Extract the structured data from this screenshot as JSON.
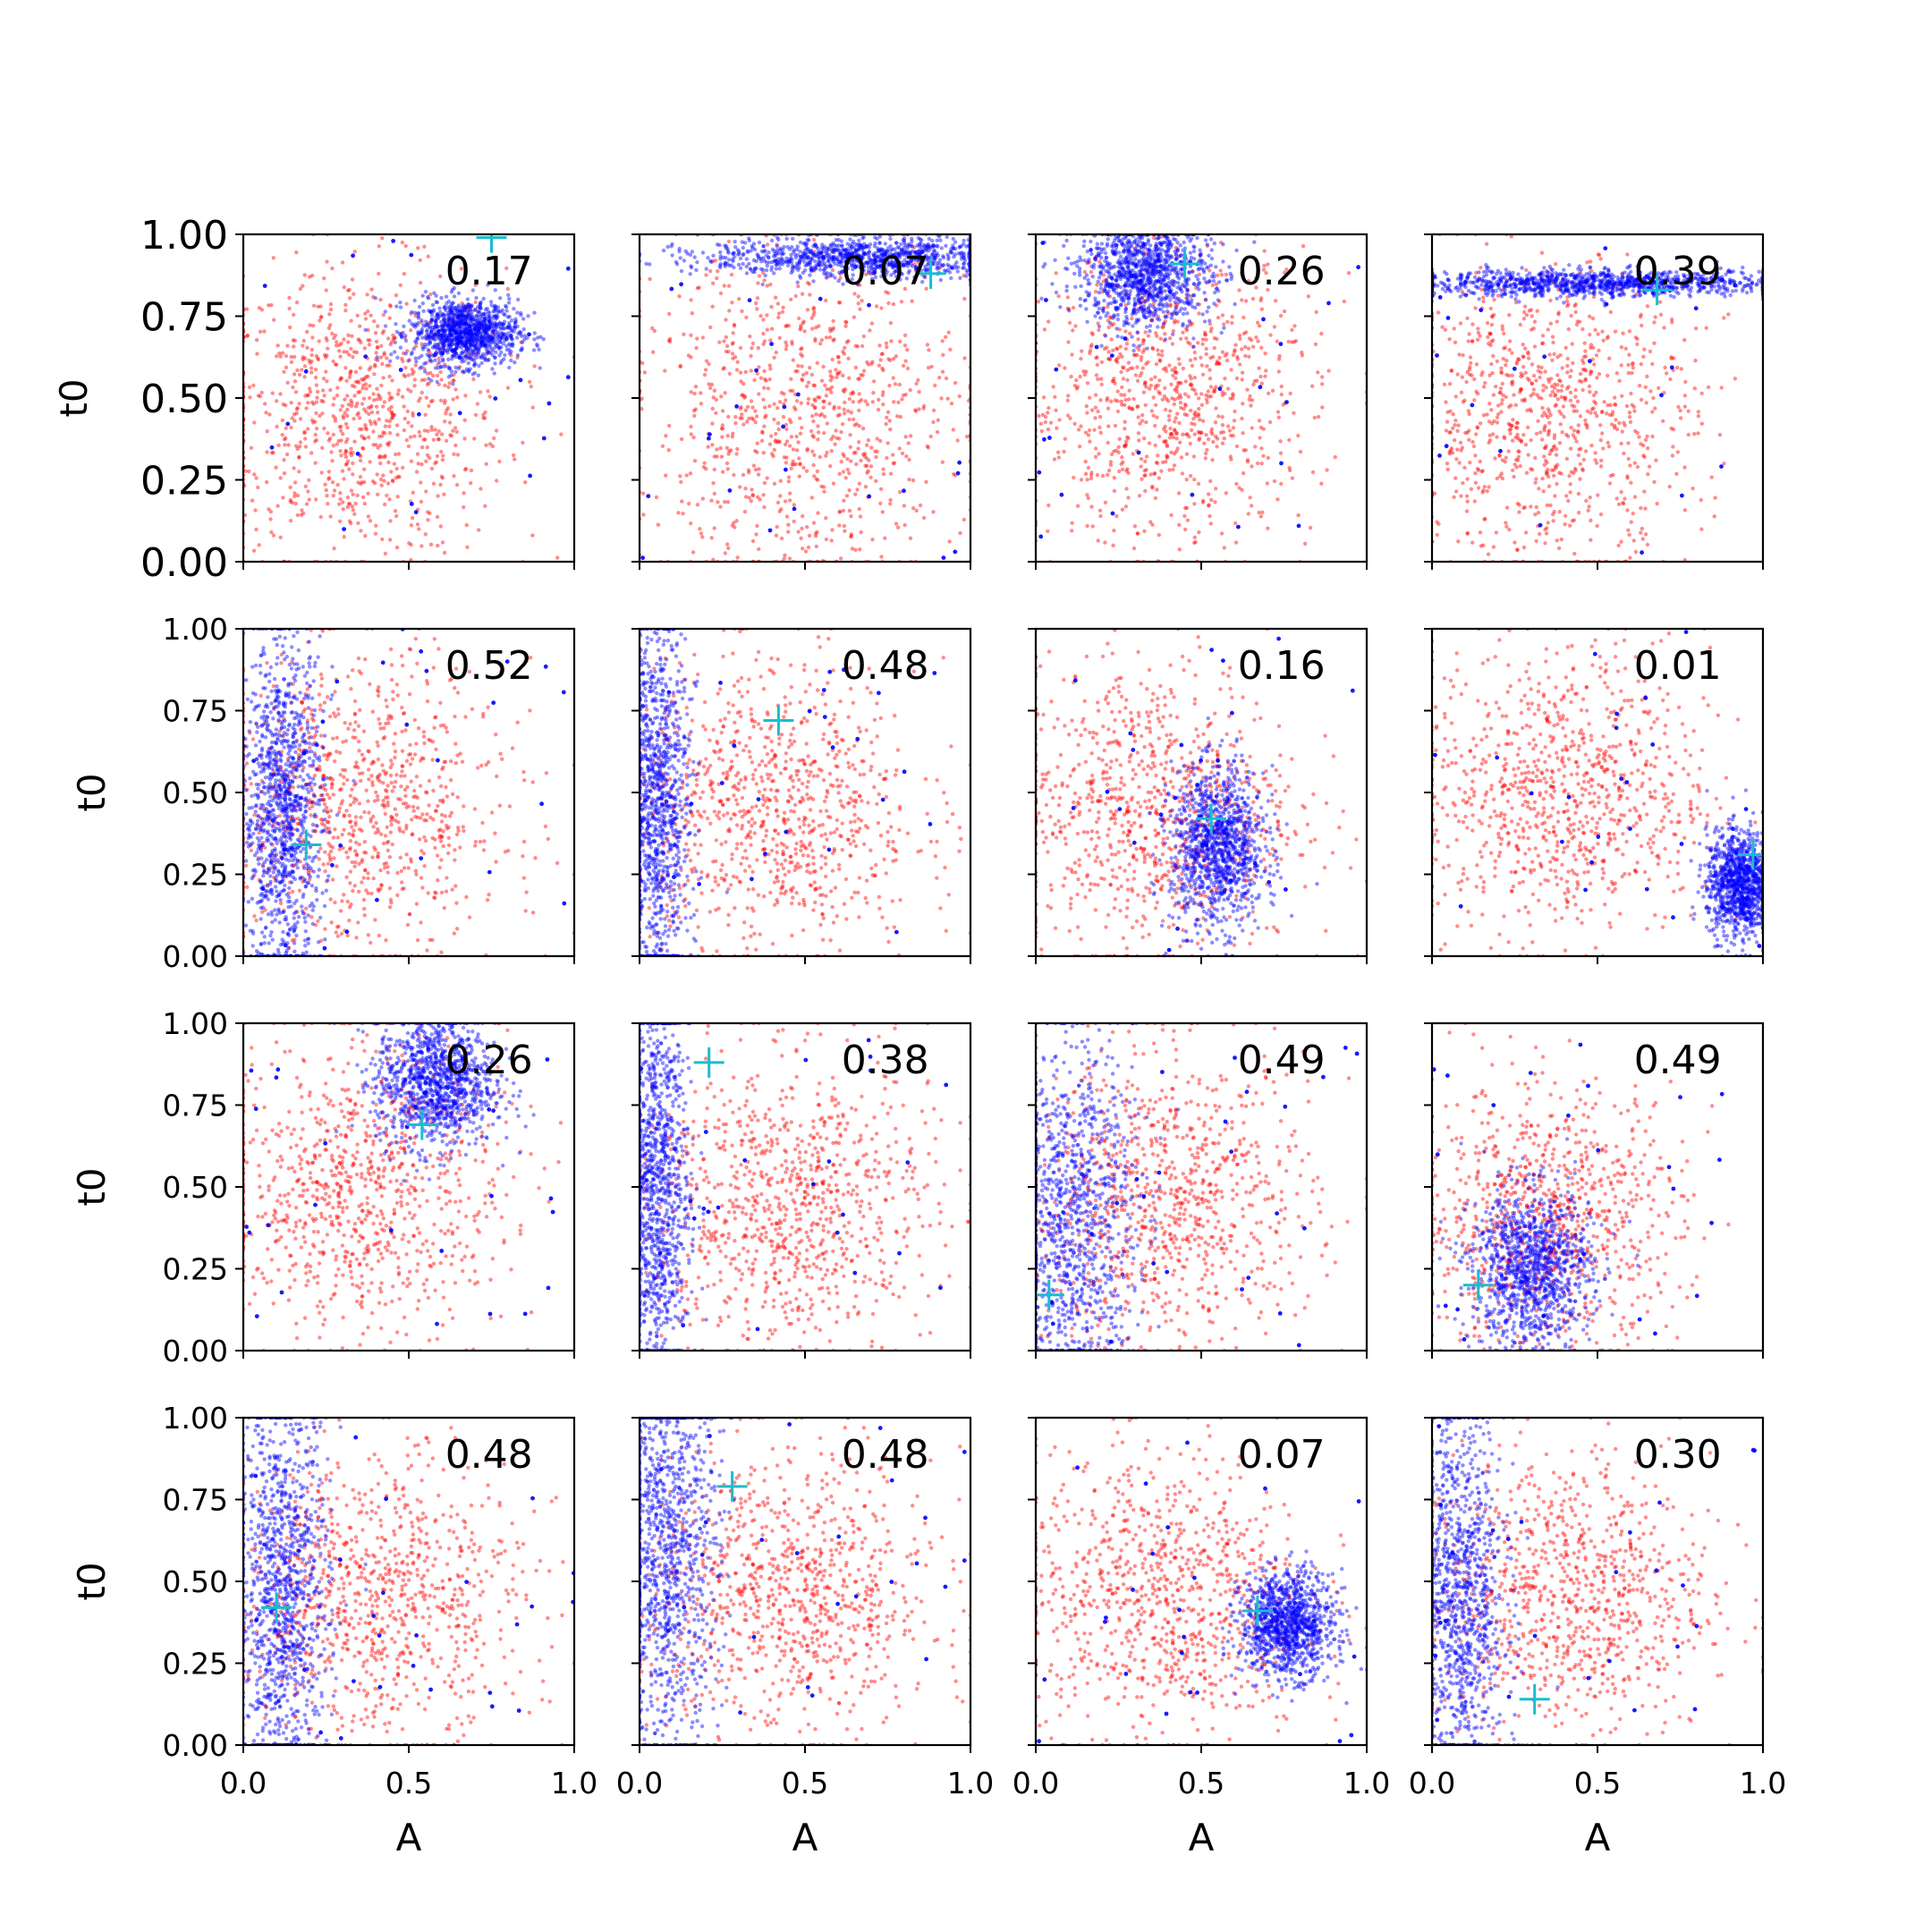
{
  "figure": {
    "colors": {
      "prior": "#ff0000",
      "posterior": "#0000ff",
      "truth": "#17becf",
      "axis": "#000000"
    },
    "rows": 4,
    "cols": 4,
    "xlabel": "A",
    "ylabel": "t0",
    "x_tick_labels": [
      "0.0",
      "0.5",
      "1.0"
    ],
    "y_tick_labels": [
      "0.00",
      "0.25",
      "0.50",
      "0.75",
      "1.00"
    ]
  },
  "chart_data": [
    {
      "type": "scatter",
      "panel": "row1-col1",
      "annotation": "0.17",
      "xlim": [
        0,
        1
      ],
      "ylim": [
        0,
        1
      ],
      "prior": {
        "center": [
          0.35,
          0.45
        ],
        "spread": [
          0.22,
          0.22
        ]
      },
      "posterior": {
        "center": [
          0.67,
          0.7
        ],
        "spread": [
          0.08,
          0.05
        ]
      },
      "truth": [
        0.75,
        0.99
      ]
    },
    {
      "type": "scatter",
      "panel": "row1-col2",
      "annotation": "0.07",
      "xlim": [
        0,
        1
      ],
      "ylim": [
        0,
        1
      ],
      "prior": {
        "center": [
          0.5,
          0.45
        ],
        "spread": [
          0.25,
          0.25
        ]
      },
      "posterior": {
        "center": [
          0.7,
          0.93
        ],
        "spread": [
          0.25,
          0.03
        ]
      },
      "truth": [
        0.88,
        0.88
      ]
    },
    {
      "type": "scatter",
      "panel": "row1-col3",
      "annotation": "0.26",
      "xlim": [
        0,
        1
      ],
      "ylim": [
        0,
        1
      ],
      "prior": {
        "center": [
          0.4,
          0.5
        ],
        "spread": [
          0.22,
          0.22
        ]
      },
      "posterior": {
        "center": [
          0.33,
          0.88
        ],
        "spread": [
          0.1,
          0.08
        ]
      },
      "truth": [
        0.45,
        0.91
      ]
    },
    {
      "type": "scatter",
      "panel": "row1-col4",
      "annotation": "0.39",
      "xlim": [
        0,
        1
      ],
      "ylim": [
        0,
        1
      ],
      "prior": {
        "center": [
          0.35,
          0.45
        ],
        "spread": [
          0.22,
          0.22
        ]
      },
      "posterior": {
        "center": [
          0.5,
          0.85
        ],
        "spread": [
          0.3,
          0.02
        ]
      },
      "truth": [
        0.68,
        0.83
      ]
    },
    {
      "type": "scatter",
      "panel": "row2-col1",
      "annotation": "0.52",
      "xlim": [
        0,
        1
      ],
      "ylim": [
        0,
        1
      ],
      "prior": {
        "center": [
          0.35,
          0.45
        ],
        "spread": [
          0.22,
          0.22
        ]
      },
      "posterior": {
        "center": [
          0.12,
          0.45
        ],
        "spread": [
          0.06,
          0.25
        ]
      },
      "truth": [
        0.19,
        0.34
      ]
    },
    {
      "type": "scatter",
      "panel": "row2-col2",
      "annotation": "0.48",
      "xlim": [
        0,
        1
      ],
      "ylim": [
        0,
        1
      ],
      "prior": {
        "center": [
          0.4,
          0.45
        ],
        "spread": [
          0.22,
          0.22
        ]
      },
      "posterior": {
        "center": [
          0.05,
          0.45
        ],
        "spread": [
          0.05,
          0.28
        ]
      },
      "truth": [
        0.42,
        0.72
      ]
    },
    {
      "type": "scatter",
      "panel": "row2-col3",
      "annotation": "0.16",
      "xlim": [
        0,
        1
      ],
      "ylim": [
        0,
        1
      ],
      "prior": {
        "center": [
          0.35,
          0.45
        ],
        "spread": [
          0.22,
          0.22
        ]
      },
      "posterior": {
        "center": [
          0.55,
          0.33
        ],
        "spread": [
          0.07,
          0.12
        ]
      },
      "truth": [
        0.53,
        0.42
      ]
    },
    {
      "type": "scatter",
      "panel": "row2-col4",
      "annotation": "0.01",
      "xlim": [
        0,
        1
      ],
      "ylim": [
        0,
        1
      ],
      "prior": {
        "center": [
          0.4,
          0.5
        ],
        "spread": [
          0.22,
          0.22
        ]
      },
      "posterior": {
        "center": [
          0.93,
          0.22
        ],
        "spread": [
          0.05,
          0.08
        ]
      },
      "truth": [
        0.97,
        0.31
      ]
    },
    {
      "type": "scatter",
      "panel": "row3-col1",
      "annotation": "0.26",
      "xlim": [
        0,
        1
      ],
      "ylim": [
        0,
        1
      ],
      "prior": {
        "center": [
          0.35,
          0.5
        ],
        "spread": [
          0.22,
          0.22
        ]
      },
      "posterior": {
        "center": [
          0.58,
          0.82
        ],
        "spread": [
          0.09,
          0.1
        ]
      },
      "truth": [
        0.54,
        0.69
      ]
    },
    {
      "type": "scatter",
      "panel": "row3-col2",
      "annotation": "0.38",
      "xlim": [
        0,
        1
      ],
      "ylim": [
        0,
        1
      ],
      "prior": {
        "center": [
          0.45,
          0.45
        ],
        "spread": [
          0.22,
          0.22
        ]
      },
      "posterior": {
        "center": [
          0.05,
          0.5
        ],
        "spread": [
          0.05,
          0.3
        ]
      },
      "truth": [
        0.21,
        0.88
      ]
    },
    {
      "type": "scatter",
      "panel": "row3-col3",
      "annotation": "0.49",
      "xlim": [
        0,
        1
      ],
      "ylim": [
        0,
        1
      ],
      "prior": {
        "center": [
          0.4,
          0.45
        ],
        "spread": [
          0.22,
          0.22
        ]
      },
      "posterior": {
        "center": [
          0.1,
          0.4
        ],
        "spread": [
          0.1,
          0.28
        ]
      },
      "truth": [
        0.04,
        0.17
      ]
    },
    {
      "type": "scatter",
      "panel": "row3-col4",
      "annotation": "0.49",
      "xlim": [
        0,
        1
      ],
      "ylim": [
        0,
        1
      ],
      "prior": {
        "center": [
          0.35,
          0.4
        ],
        "spread": [
          0.2,
          0.2
        ]
      },
      "posterior": {
        "center": [
          0.3,
          0.25
        ],
        "spread": [
          0.09,
          0.12
        ]
      },
      "truth": [
        0.14,
        0.2
      ]
    },
    {
      "type": "scatter",
      "panel": "row4-col1",
      "annotation": "0.48",
      "xlim": [
        0,
        1
      ],
      "ylim": [
        0,
        1
      ],
      "prior": {
        "center": [
          0.4,
          0.45
        ],
        "spread": [
          0.22,
          0.22
        ]
      },
      "posterior": {
        "center": [
          0.12,
          0.45
        ],
        "spread": [
          0.07,
          0.3
        ]
      },
      "truth": [
        0.1,
        0.42
      ]
    },
    {
      "type": "scatter",
      "panel": "row4-col2",
      "annotation": "0.48",
      "xlim": [
        0,
        1
      ],
      "ylim": [
        0,
        1
      ],
      "prior": {
        "center": [
          0.45,
          0.45
        ],
        "spread": [
          0.22,
          0.22
        ]
      },
      "posterior": {
        "center": [
          0.08,
          0.6
        ],
        "spread": [
          0.08,
          0.3
        ]
      },
      "truth": [
        0.28,
        0.79
      ]
    },
    {
      "type": "scatter",
      "panel": "row4-col3",
      "annotation": "0.07",
      "xlim": [
        0,
        1
      ],
      "ylim": [
        0,
        1
      ],
      "prior": {
        "center": [
          0.38,
          0.45
        ],
        "spread": [
          0.22,
          0.22
        ]
      },
      "posterior": {
        "center": [
          0.76,
          0.37
        ],
        "spread": [
          0.07,
          0.08
        ]
      },
      "truth": [
        0.67,
        0.41
      ]
    },
    {
      "type": "scatter",
      "panel": "row4-col4",
      "annotation": "0.30",
      "xlim": [
        0,
        1
      ],
      "ylim": [
        0,
        1
      ],
      "prior": {
        "center": [
          0.4,
          0.45
        ],
        "spread": [
          0.22,
          0.22
        ]
      },
      "posterior": {
        "center": [
          0.08,
          0.45
        ],
        "spread": [
          0.07,
          0.3
        ]
      },
      "truth": [
        0.31,
        0.14
      ]
    }
  ]
}
